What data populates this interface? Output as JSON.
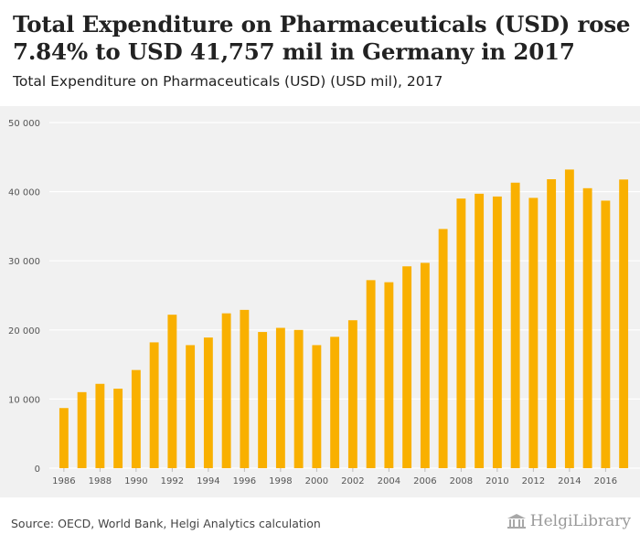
{
  "title": "Total Expenditure on Pharmaceuticals (USD) rose 7.84% to USD 41,757 mil in Germany in 2017",
  "subtitle": "Total Expenditure on Pharmaceuticals (USD) (USD mil), 2017",
  "source": "Source: OECD, World Bank, Helgi Analytics calculation",
  "brand": {
    "name": "HelgiLibrary",
    "logo_icon": "library-building-icon"
  },
  "colors": {
    "bar": "#f9b000",
    "plot_bg": "#f1f1f1",
    "grid": "#ffffff",
    "text": "#222222"
  },
  "chart_data": {
    "type": "bar",
    "categories": [
      "1986",
      "1987",
      "1988",
      "1989",
      "1990",
      "1991",
      "1992",
      "1993",
      "1994",
      "1995",
      "1996",
      "1997",
      "1998",
      "1999",
      "2000",
      "2001",
      "2002",
      "2003",
      "2004",
      "2005",
      "2006",
      "2007",
      "2008",
      "2009",
      "2010",
      "2011",
      "2012",
      "2013",
      "2014",
      "2015",
      "2016",
      "2017"
    ],
    "values": [
      8700,
      11000,
      12200,
      11500,
      14200,
      18200,
      22200,
      17800,
      18900,
      22400,
      22900,
      19700,
      20300,
      20000,
      17800,
      19000,
      21400,
      27200,
      26900,
      29200,
      29700,
      34600,
      39000,
      39700,
      39300,
      41300,
      39100,
      41800,
      43200,
      40500,
      38700,
      41757
    ],
    "x_tick_labels": [
      "1986",
      "1988",
      "1990",
      "1992",
      "1994",
      "1996",
      "1998",
      "2000",
      "2002",
      "2004",
      "2006",
      "2008",
      "2010",
      "2012",
      "2014",
      "2016"
    ],
    "y_ticks": [
      0,
      10000,
      20000,
      30000,
      40000,
      50000
    ],
    "y_tick_labels": [
      "0",
      "10 000",
      "20 000",
      "30 000",
      "40 000",
      "50 000"
    ],
    "ylim": [
      0,
      50000
    ],
    "grid": true,
    "legend": "none"
  }
}
